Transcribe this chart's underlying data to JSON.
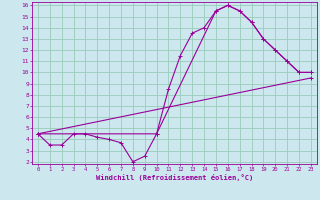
{
  "xlabel": "Windchill (Refroidissement éolien,°C)",
  "bg_color": "#cce8ee",
  "line_color": "#990099",
  "grid_color": "#99ccbb",
  "xlim": [
    -0.5,
    23.5
  ],
  "ylim": [
    1.8,
    16.3
  ],
  "xticks": [
    0,
    1,
    2,
    3,
    4,
    5,
    6,
    7,
    8,
    9,
    10,
    11,
    12,
    13,
    14,
    15,
    16,
    17,
    18,
    19,
    20,
    21,
    22,
    23
  ],
  "yticks": [
    2,
    3,
    4,
    5,
    6,
    7,
    8,
    9,
    10,
    11,
    12,
    13,
    14,
    15,
    16
  ],
  "series1_x": [
    0,
    1,
    2,
    3,
    4,
    5,
    6,
    7,
    8,
    9,
    10,
    11,
    12,
    13,
    14,
    15,
    16,
    17,
    18,
    19,
    20,
    21,
    22,
    23
  ],
  "series1_y": [
    4.5,
    3.5,
    3.5,
    4.5,
    4.5,
    4.2,
    4.0,
    3.7,
    2.0,
    2.5,
    4.5,
    8.5,
    11.5,
    13.5,
    14.0,
    15.5,
    16.0,
    15.5,
    14.5,
    13.0,
    12.0,
    11.0,
    10.0,
    10.0
  ],
  "series2_x": [
    0,
    10,
    15,
    16,
    17,
    18,
    19,
    20,
    21,
    22,
    23
  ],
  "series2_y": [
    4.5,
    4.5,
    15.5,
    16.0,
    15.5,
    14.5,
    13.0,
    12.0,
    11.0,
    10.0,
    10.0
  ],
  "series3_x": [
    0,
    23
  ],
  "series3_y": [
    4.5,
    9.5
  ]
}
